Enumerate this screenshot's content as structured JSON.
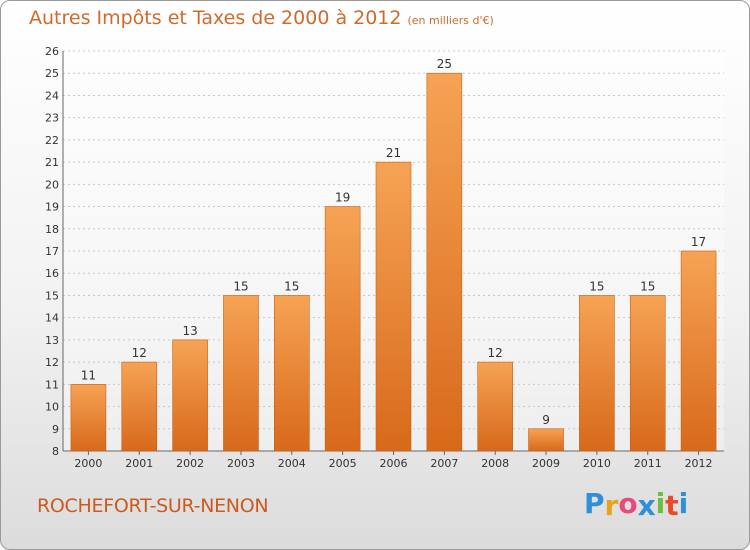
{
  "header": {
    "title": "Autres Impôts et Taxes de 2000 à 2012",
    "unit": "(en milliers d'€)"
  },
  "footer": {
    "commune": "ROCHEFORT-SUR-NENON",
    "logo_letters": [
      "P",
      "r",
      "o",
      "x",
      "i",
      "t",
      "i"
    ],
    "logo_colors": [
      "#2f8fd8",
      "#e8a21c",
      "#e84a7c",
      "#2f8fd8",
      "#6cbf3a",
      "#e84a2a",
      "#2f8fd8"
    ]
  },
  "colors": {
    "bar_light": "#f6a355",
    "bar_dark": "#d8691a",
    "bar_stroke": "#c86018",
    "grid": "#c8c8c8",
    "text": "#333333"
  },
  "chart_data": {
    "type": "bar",
    "categories": [
      "2000",
      "2001",
      "2002",
      "2003",
      "2004",
      "2005",
      "2006",
      "2007",
      "2008",
      "2009",
      "2010",
      "2011",
      "2012"
    ],
    "values": [
      11,
      12,
      13,
      15,
      15,
      19,
      21,
      25,
      12,
      9,
      15,
      15,
      17
    ],
    "ylim": [
      8,
      26
    ],
    "yticks": [
      8,
      9,
      10,
      11,
      12,
      13,
      14,
      15,
      16,
      17,
      18,
      19,
      20,
      21,
      22,
      23,
      24,
      25,
      26
    ],
    "grid": true,
    "data_labels": true
  }
}
